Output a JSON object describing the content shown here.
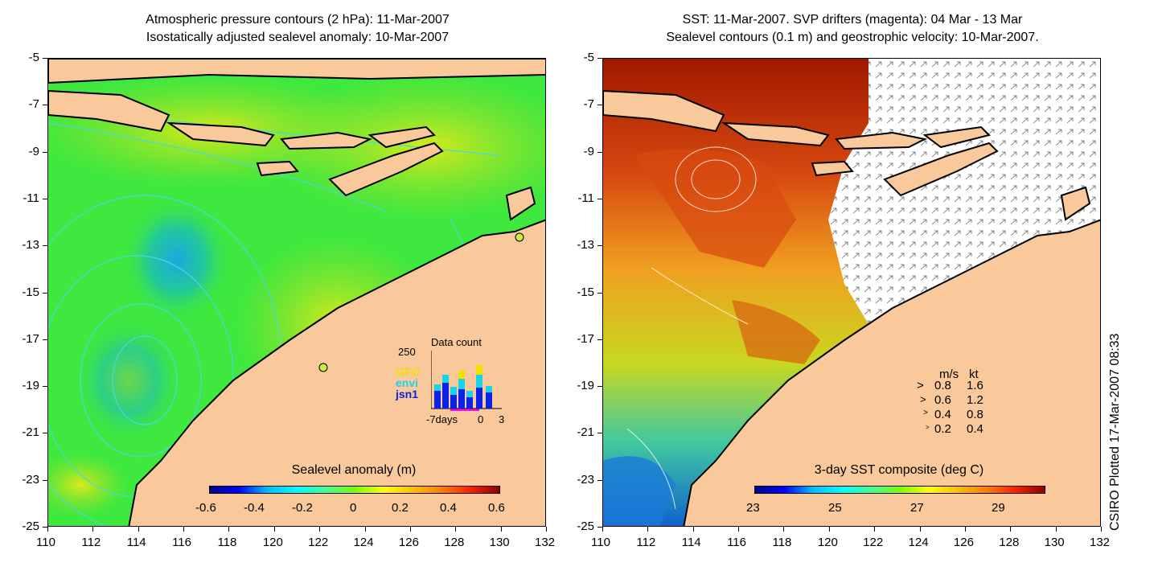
{
  "left_panel": {
    "title_line1": "Atmospheric pressure contours (2 hPa): 11-Mar-2007",
    "title_line2": "Isostatically adjusted sealevel anomaly: 10-Mar-2007",
    "colorbar": {
      "title": "Sealevel anomaly (m)",
      "ticks": [
        "-0.6",
        "-0.4",
        "-0.2",
        "0",
        "0.2",
        "0.4",
        "0.6"
      ]
    },
    "inset": {
      "title": "Data count",
      "ymax_label": "250",
      "series": [
        "GFO",
        "envi",
        "jsn1"
      ],
      "series_colors": [
        "#f0e000",
        "#19d3e8",
        "#0a23e6"
      ],
      "x_labels": [
        "-7days",
        "0",
        "3"
      ]
    }
  },
  "right_panel": {
    "title_line1": "SST: 11-Mar-2007. SVP drifters (magenta): 04 Mar - 13 Mar",
    "title_line2": "Sealevel contours (0.1 m) and geostrophic velocity: 10-Mar-2007.",
    "colorbar": {
      "title": "3-day SST composite (deg C)",
      "ticks": [
        "23",
        "25",
        "27",
        "29"
      ]
    },
    "velocity_legend": {
      "header_ms": "m/s",
      "header_kt": "kt",
      "rows": [
        {
          "ms": "0.8",
          "kt": "1.6"
        },
        {
          "ms": "0.6",
          "kt": "1.2"
        },
        {
          "ms": "0.4",
          "kt": "0.8"
        },
        {
          "ms": "0.2",
          "kt": "0.4"
        }
      ]
    }
  },
  "axes": {
    "x_ticks": [
      "110",
      "112",
      "114",
      "116",
      "118",
      "120",
      "122",
      "124",
      "126",
      "128",
      "130",
      "132"
    ],
    "y_ticks": [
      "-5",
      "-7",
      "-9",
      "-11",
      "-13",
      "-15",
      "-17",
      "-19",
      "-21",
      "-23",
      "-25"
    ]
  },
  "credit": "CSIRO Plotted 17-Mar-2007 08:33",
  "colors": {
    "land": "#f9c89b",
    "ocean_left": "#3ee83e",
    "coast": "#000000",
    "contour": "#49d8e0"
  }
}
